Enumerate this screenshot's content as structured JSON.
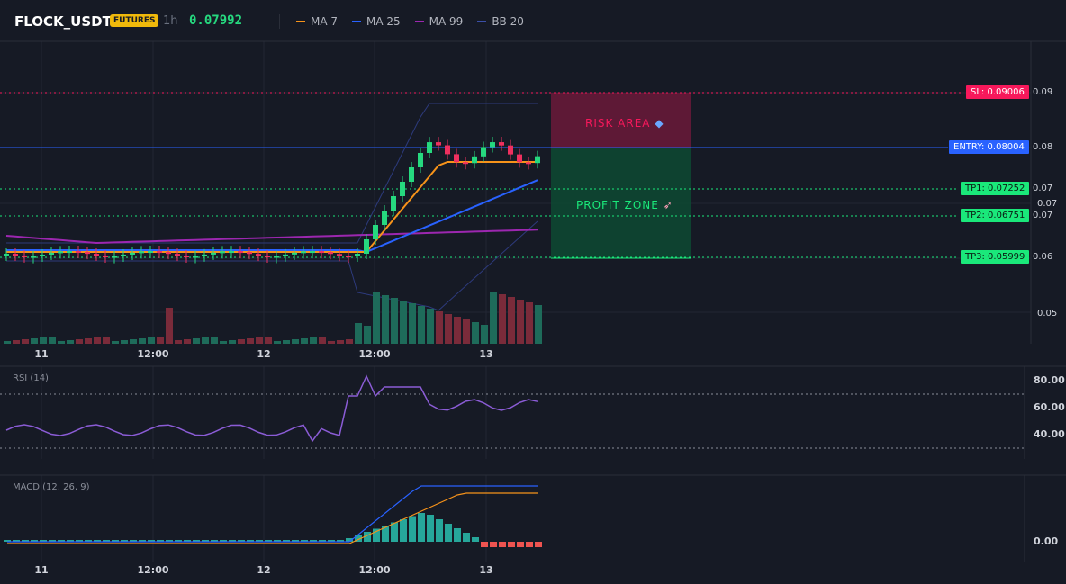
{
  "header": {
    "symbol": "FLOCK_USDT",
    "badge": "FUTURES",
    "timeframe": "1h",
    "price": "0.07992",
    "legend": [
      {
        "name": "MA 7",
        "color": "#f7931a"
      },
      {
        "name": "MA 25",
        "color": "#2962ff"
      },
      {
        "name": "MA 99",
        "color": "#9c27b0"
      },
      {
        "name": "BB 20",
        "color": "#3b4fa8"
      }
    ]
  },
  "price_scale": {
    "tick_007": "0.07",
    "tick_005": "0.05"
  },
  "levels": {
    "sl": {
      "label": "SL: 0.09006",
      "scale": "0.09",
      "color": "#f7185b"
    },
    "entry": {
      "label": "ENTRY: 0.08004",
      "scale": "0.08",
      "color": "#2962ff"
    },
    "tp1": {
      "label": "TP1: 0.07252",
      "scale": "0.07",
      "color": "#1ae87a"
    },
    "tp2": {
      "label": "TP2: 0.06751",
      "scale": "0.07",
      "color": "#1ae87a"
    },
    "tp3": {
      "label": "TP3: 0.05999",
      "scale": "0.06",
      "color": "#1ae87a"
    }
  },
  "zones": {
    "risk": "RISK AREA",
    "profit": "PROFIT ZONE"
  },
  "time_axis": [
    "11",
    "12:00",
    "12",
    "12:00",
    "13"
  ],
  "rsi": {
    "title": "RSI (14)",
    "ticks": [
      "80.00",
      "60.00",
      "40.00"
    ]
  },
  "macd": {
    "title": "MACD (12, 26, 9)",
    "tick": "0.00"
  },
  "colors": {
    "up": "#26d97f",
    "down": "#f0305f",
    "ma7": "#f7931a",
    "ma25": "#2962ff",
    "ma99": "#9c27b0",
    "bb": "#2d3a7c",
    "rsi": "#8b5cd6"
  }
}
